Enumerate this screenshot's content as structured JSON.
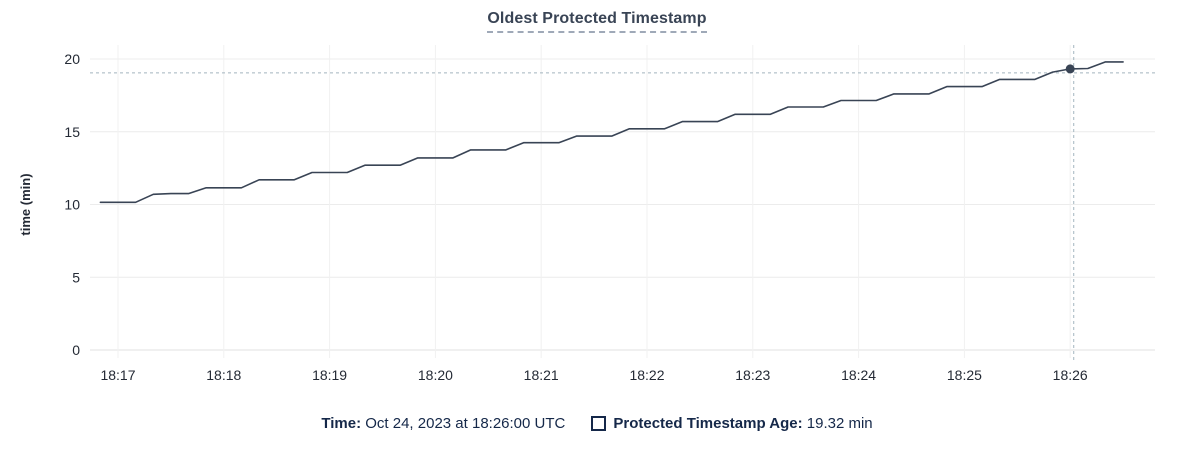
{
  "title": "Oldest Protected Timestamp",
  "colors": {
    "series_line": "#394455",
    "title_text": "#394455",
    "legend_text": "#152849",
    "crosshair": "#a3b5bf",
    "grid_line": "#ececec",
    "grid_line_vertical": "#f1f1f1",
    "axis_text": "#242a35",
    "background": "#ffffff"
  },
  "chart_data": {
    "type": "line",
    "title": "Oldest Protected Timestamp",
    "xlabel": "",
    "ylabel": "time (min)",
    "ylim": [
      0,
      20
    ],
    "y_ticks": [
      0,
      5,
      10,
      15,
      20
    ],
    "x_tick_labels": [
      "18:17",
      "18:18",
      "18:19",
      "18:20",
      "18:21",
      "18:22",
      "18:23",
      "18:24",
      "18:25",
      "18:26"
    ],
    "x_tick_seconds": [
      0,
      60,
      120,
      180,
      240,
      300,
      360,
      420,
      480,
      540
    ],
    "grid": true,
    "legend_position": "bottom-center",
    "series": [
      {
        "name": "Protected Timestamp Age",
        "color": "#394455",
        "points_seconds_minutes": [
          [
            -10,
            10.15
          ],
          [
            0,
            10.15
          ],
          [
            10,
            10.15
          ],
          [
            20,
            10.7
          ],
          [
            30,
            10.75
          ],
          [
            40,
            10.75
          ],
          [
            50,
            11.15
          ],
          [
            60,
            11.15
          ],
          [
            70,
            11.15
          ],
          [
            80,
            11.7
          ],
          [
            90,
            11.7
          ],
          [
            100,
            11.7
          ],
          [
            110,
            12.2
          ],
          [
            120,
            12.2
          ],
          [
            130,
            12.2
          ],
          [
            140,
            12.7
          ],
          [
            150,
            12.7
          ],
          [
            160,
            12.7
          ],
          [
            170,
            13.2
          ],
          [
            180,
            13.2
          ],
          [
            190,
            13.2
          ],
          [
            200,
            13.75
          ],
          [
            210,
            13.75
          ],
          [
            220,
            13.75
          ],
          [
            230,
            14.25
          ],
          [
            240,
            14.25
          ],
          [
            250,
            14.25
          ],
          [
            260,
            14.7
          ],
          [
            270,
            14.7
          ],
          [
            280,
            14.7
          ],
          [
            290,
            15.2
          ],
          [
            300,
            15.2
          ],
          [
            310,
            15.2
          ],
          [
            320,
            15.7
          ],
          [
            330,
            15.7
          ],
          [
            340,
            15.7
          ],
          [
            350,
            16.2
          ],
          [
            360,
            16.2
          ],
          [
            370,
            16.2
          ],
          [
            380,
            16.7
          ],
          [
            390,
            16.7
          ],
          [
            400,
            16.7
          ],
          [
            410,
            17.15
          ],
          [
            420,
            17.15
          ],
          [
            430,
            17.15
          ],
          [
            440,
            17.6
          ],
          [
            450,
            17.6
          ],
          [
            460,
            17.6
          ],
          [
            470,
            18.1
          ],
          [
            480,
            18.1
          ],
          [
            490,
            18.1
          ],
          [
            500,
            18.6
          ],
          [
            510,
            18.6
          ],
          [
            520,
            18.6
          ],
          [
            530,
            19.1
          ],
          [
            540,
            19.32
          ],
          [
            550,
            19.35
          ],
          [
            560,
            19.8
          ],
          [
            570,
            19.8
          ]
        ]
      }
    ],
    "hover": {
      "time": "18:26:00",
      "point_seconds": 540,
      "value_min": 19.32,
      "cursor_seconds": 542,
      "cursor_value_min": 19.05
    }
  },
  "legend": {
    "time_label": "Time:",
    "time_value": " Oct 24, 2023 at 18:26:00 UTC",
    "series_label": "Protected Timestamp Age:",
    "series_value": " 19.32 min"
  }
}
